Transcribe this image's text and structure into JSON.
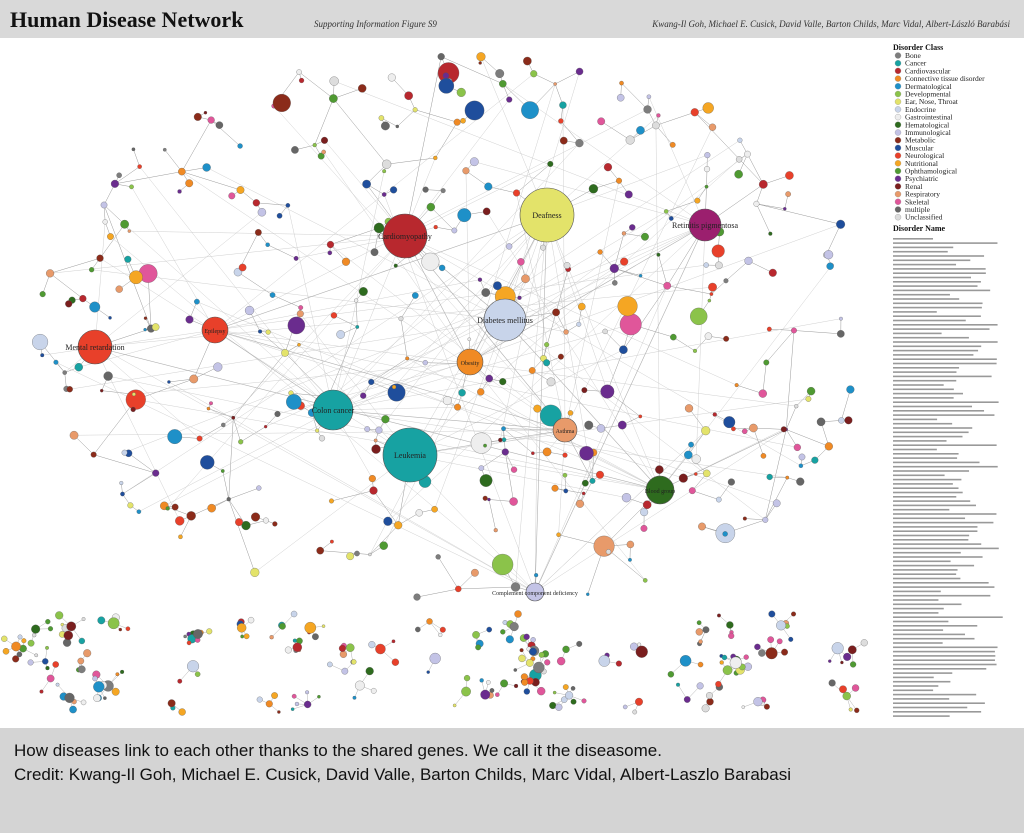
{
  "header": {
    "title": "Human Disease Network",
    "subtitle": "Supporting Information Figure S9",
    "authors": "Kwang-Il Goh, Michael E. Cusick, David Valle, Barton Childs, Marc Vidal, Albert-László Barabási"
  },
  "legend": {
    "title": "Disorder Class",
    "items": [
      {
        "name": "Bone",
        "color": "#7d7d7d"
      },
      {
        "name": "Cancer",
        "color": "#17a2a2"
      },
      {
        "name": "Cardiovascular",
        "color": "#b8282e"
      },
      {
        "name": "Connective tissue disorder",
        "color": "#f08a24"
      },
      {
        "name": "Dermatological",
        "color": "#1e90c8"
      },
      {
        "name": "Developmental",
        "color": "#8bc34a"
      },
      {
        "name": "Ear, Nose, Throat",
        "color": "#e3e36a"
      },
      {
        "name": "Endocrine",
        "color": "#c8d4ea"
      },
      {
        "name": "Gastrointestinal",
        "color": "#eeeeee"
      },
      {
        "name": "Hematological",
        "color": "#2e6b1e"
      },
      {
        "name": "Immunological",
        "color": "#c3c3e6"
      },
      {
        "name": "Metabolic",
        "color": "#8b2b1a"
      },
      {
        "name": "Muscular",
        "color": "#1f4e9c"
      },
      {
        "name": "Neurological",
        "color": "#e8402a"
      },
      {
        "name": "Nutritional",
        "color": "#f5a623"
      },
      {
        "name": "Ophthamological",
        "color": "#4f9a32"
      },
      {
        "name": "Psychiatric",
        "color": "#6a2c8e"
      },
      {
        "name": "Renal",
        "color": "#7a1e1e"
      },
      {
        "name": "Respiratory",
        "color": "#e89a6a"
      },
      {
        "name": "Skeletal",
        "color": "#e0569a"
      },
      {
        "name": "multiple",
        "color": "#666666"
      },
      {
        "name": "Unclassified",
        "color": "#dddddd"
      }
    ]
  },
  "names_title": "Disorder Name",
  "nodes": [
    {
      "label": "Deafness",
      "color": "#e3e36a"
    },
    {
      "label": "Cardiomyopathy",
      "color": "#b8282e"
    },
    {
      "label": "Diabetes mellitus",
      "color": "#c8d4ea"
    },
    {
      "label": "Obesity",
      "color": "#f08a24"
    },
    {
      "label": "Colon cancer",
      "color": "#17a2a2"
    },
    {
      "label": "Leukemia",
      "color": "#17a2a2"
    },
    {
      "label": "Asthma",
      "color": "#e89a6a"
    },
    {
      "label": "Mental retardation",
      "color": "#e8402a"
    },
    {
      "label": "Epilepsy",
      "color": "#e8402a"
    },
    {
      "label": "Blood group",
      "color": "#2e6b1e"
    },
    {
      "label": "Complement component deficiency",
      "color": "#c3c3e6"
    },
    {
      "label": "Retinitis pigmentosa",
      "color": "#9b1f6e"
    }
  ],
  "caption": {
    "lines": [
      "How diseases link to each other thanks to the shared genes. We call it the diseasome.",
      "Credit: Kwang-Il Goh, Michael E. Cusick, David Valle, Barton Childs, Marc Vidal, Albert-Laszlo Barabasi"
    ]
  }
}
